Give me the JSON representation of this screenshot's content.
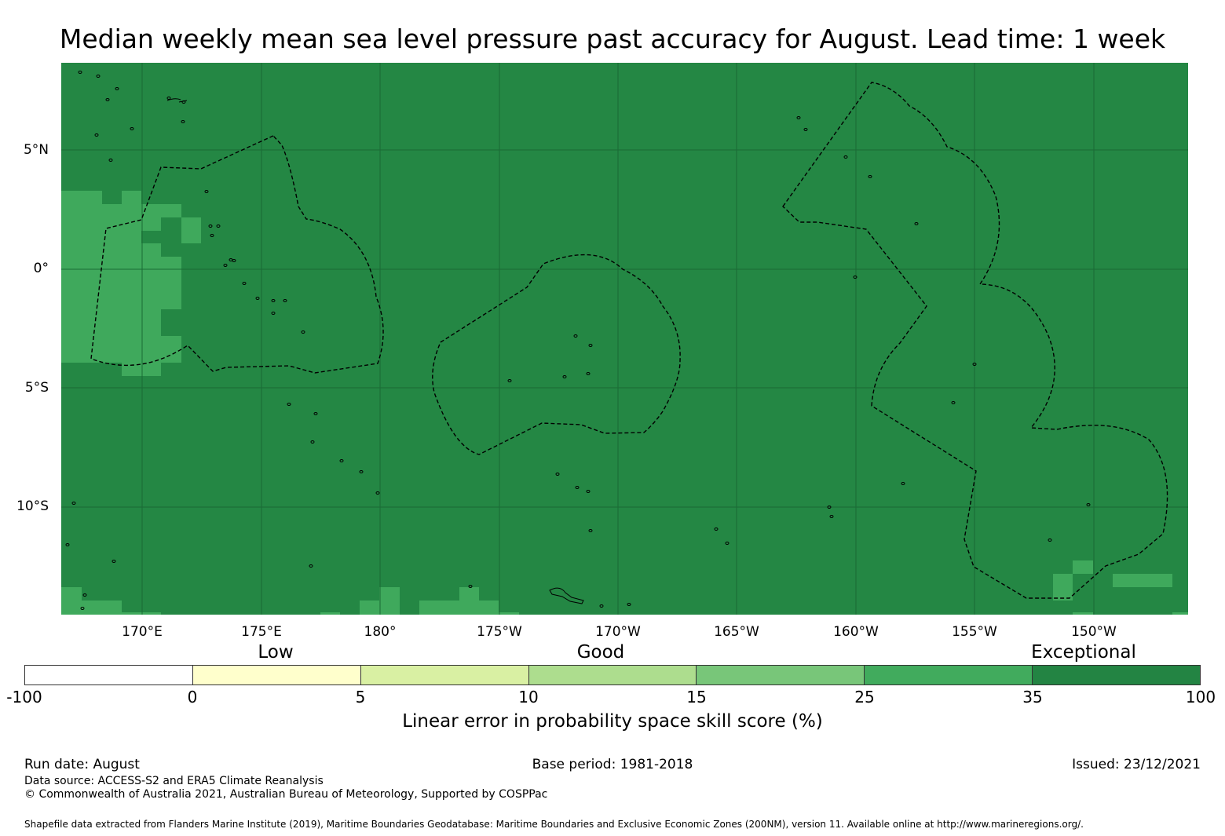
{
  "title": "Median weekly mean sea level pressure past accuracy for August. Lead time: 1 week",
  "map": {
    "background_color": "#248744",
    "patch_color": "#3fa95c",
    "grid_color": "#1a6a35",
    "boundary_style": "dashed",
    "lat_labels": [
      "5°N",
      "0°",
      "5°S",
      "10°S"
    ],
    "lon_labels": [
      "170°E",
      "175°E",
      "180°",
      "175°W",
      "170°W",
      "165°W",
      "160°W",
      "155°W",
      "150°W"
    ]
  },
  "legend": {
    "categories": [
      "Low",
      "Good",
      "Exceptional"
    ],
    "ticks": [
      "-100",
      "0",
      "5",
      "10",
      "15",
      "25",
      "35",
      "100"
    ],
    "colors": [
      "#ffffff",
      "#ffffcc",
      "#d9f0a3",
      "#addd8e",
      "#78c679",
      "#41ab5d",
      "#238443"
    ],
    "title": "Linear error in probability space skill score (%)"
  },
  "footer": {
    "run_date": "Run date: August",
    "base_period": "Base period: 1981-2018",
    "issued": "Issued: 23/12/2021",
    "data_source": "Data source: ACCESS-S2 and ERA5 Climate Reanalysis",
    "copyright": "© Commonwealth of Australia 2021, Australian Bureau of Meteorology, Supported by COSPPac",
    "shapefile": "Shapefile data extracted from Flanders Marine Institute (2019), Maritime Boundaries Geodatabase: Maritime Boundaries and Exclusive Economic Zones (200NM), version 11. Available online at http://www.marineregions.org/."
  }
}
